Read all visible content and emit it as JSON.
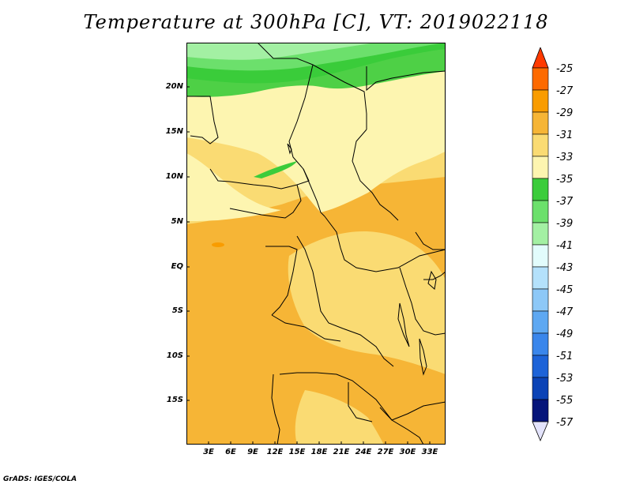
{
  "title": "Temperature at 300hPa [C], VT: 2019022118",
  "footer": "GrADS: IGES/COLA",
  "map": {
    "lat_labels": [
      "20N",
      "15N",
      "10N",
      "5N",
      "EQ",
      "5S",
      "10S",
      "15S"
    ],
    "lon_labels": [
      "3E",
      "6E",
      "9E",
      "12E",
      "15E",
      "18E",
      "21E",
      "24E",
      "27E",
      "30E",
      "33E"
    ]
  },
  "colorbar": {
    "levels": [
      "-25",
      "-27",
      "-29",
      "-31",
      "-33",
      "-35",
      "-37",
      "-39",
      "-41",
      "-43",
      "-45",
      "-47",
      "-49",
      "-51",
      "-53",
      "-55",
      "-57"
    ],
    "colors": [
      "#ff3a00",
      "#fd6a00",
      "#f99c00",
      "#f6b536",
      "#fadb73",
      "#fdf5b0",
      "#3bcc3b",
      "#6ce06c",
      "#a3f0a3",
      "#e2fcfc",
      "#b4e1fb",
      "#8dc8f7",
      "#5ea8f2",
      "#3a86eb",
      "#1d63d8",
      "#0b43b6",
      "#06157a",
      "#e3e3fb"
    ]
  }
}
